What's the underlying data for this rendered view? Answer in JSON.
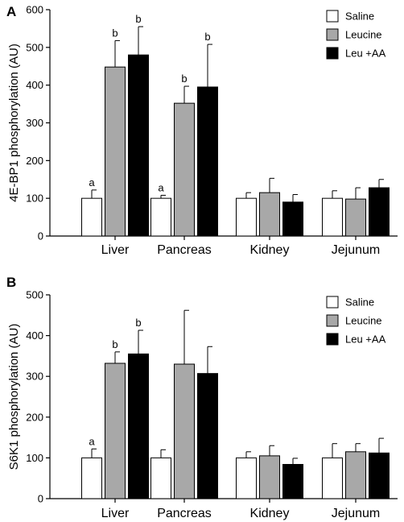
{
  "chart_data": [
    {
      "panel": "A",
      "type": "bar",
      "ylabel": "4E-BP1 phosphorylation (AU)",
      "ylim": [
        0,
        600
      ],
      "yticks": [
        0,
        100,
        200,
        300,
        400,
        500,
        600
      ],
      "categories": [
        "Liver",
        "Pancreas",
        "Kidney",
        "Jejunum"
      ],
      "legend": "top-right",
      "series": [
        {
          "name": "Saline",
          "color": "#ffffff",
          "values": [
            100,
            100,
            100,
            100
          ],
          "errors": [
            22,
            8,
            15,
            20
          ],
          "labels": [
            "a",
            "a",
            "",
            ""
          ]
        },
        {
          "name": "Leucine",
          "color": "#a8a8a8",
          "values": [
            448,
            352,
            115,
            98
          ],
          "errors": [
            70,
            45,
            38,
            30
          ],
          "labels": [
            "b",
            "b",
            "",
            ""
          ]
        },
        {
          "name": "Leu +AA",
          "color": "#000000",
          "values": [
            480,
            395,
            90,
            128
          ],
          "errors": [
            75,
            113,
            20,
            22
          ],
          "labels": [
            "b",
            "b",
            "",
            ""
          ]
        }
      ]
    },
    {
      "panel": "B",
      "type": "bar",
      "ylabel": "S6K1 phosphorylation (AU)",
      "ylim": [
        0,
        500
      ],
      "yticks": [
        0,
        100,
        200,
        300,
        400,
        500
      ],
      "categories": [
        "Liver",
        "Pancreas",
        "Kidney",
        "Jejunum"
      ],
      "legend": "top-right",
      "series": [
        {
          "name": "Saline",
          "color": "#ffffff",
          "values": [
            100,
            100,
            100,
            100
          ],
          "errors": [
            22,
            20,
            15,
            35
          ],
          "labels": [
            "a",
            "",
            "",
            ""
          ]
        },
        {
          "name": "Leucine",
          "color": "#a8a8a8",
          "values": [
            332,
            330,
            105,
            115
          ],
          "errors": [
            28,
            132,
            25,
            20
          ],
          "labels": [
            "b",
            "",
            "",
            ""
          ]
        },
        {
          "name": "Leu +AA",
          "color": "#000000",
          "values": [
            355,
            307,
            84,
            112
          ],
          "errors": [
            58,
            66,
            15,
            36
          ],
          "labels": [
            "b",
            "",
            "",
            ""
          ]
        }
      ]
    }
  ]
}
